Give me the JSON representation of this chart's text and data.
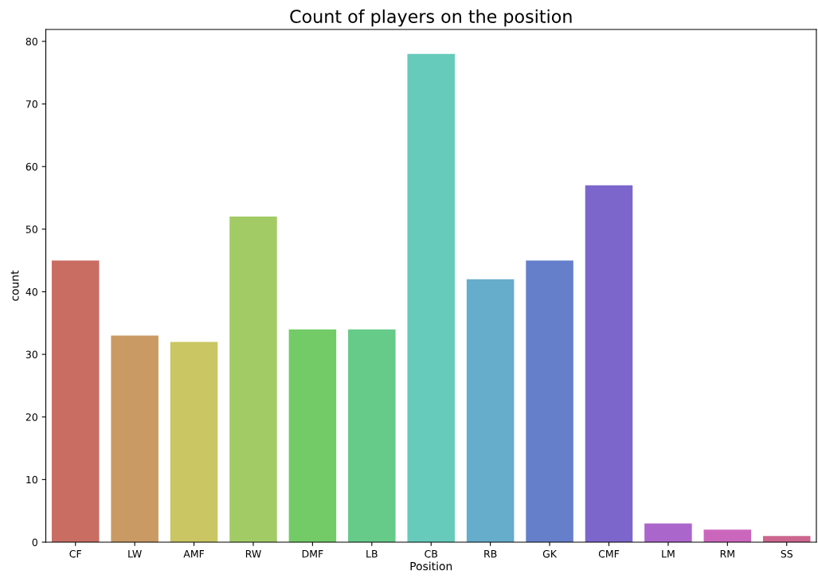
{
  "chart_data": {
    "type": "bar",
    "title": "Count of players on the position",
    "xlabel": "Position",
    "ylabel": "count",
    "categories": [
      "CF",
      "LW",
      "AMF",
      "RW",
      "DMF",
      "LB",
      "CB",
      "RB",
      "GK",
      "CMF",
      "LM",
      "RM",
      "SS"
    ],
    "values": [
      45,
      33,
      32,
      52,
      34,
      34,
      78,
      42,
      45,
      57,
      3,
      2,
      1
    ],
    "colors": [
      "#c96d63",
      "#c99a63",
      "#c9c663",
      "#a2cb66",
      "#72cb66",
      "#66cb89",
      "#66cbba",
      "#66accb",
      "#667fcb",
      "#7d66cb",
      "#ab66cb",
      "#cb66bd",
      "#cb668e"
    ],
    "ylim": [
      0,
      81.9
    ],
    "yticks": [
      0,
      10,
      20,
      30,
      40,
      50,
      60,
      70,
      80
    ],
    "grid": false
  }
}
